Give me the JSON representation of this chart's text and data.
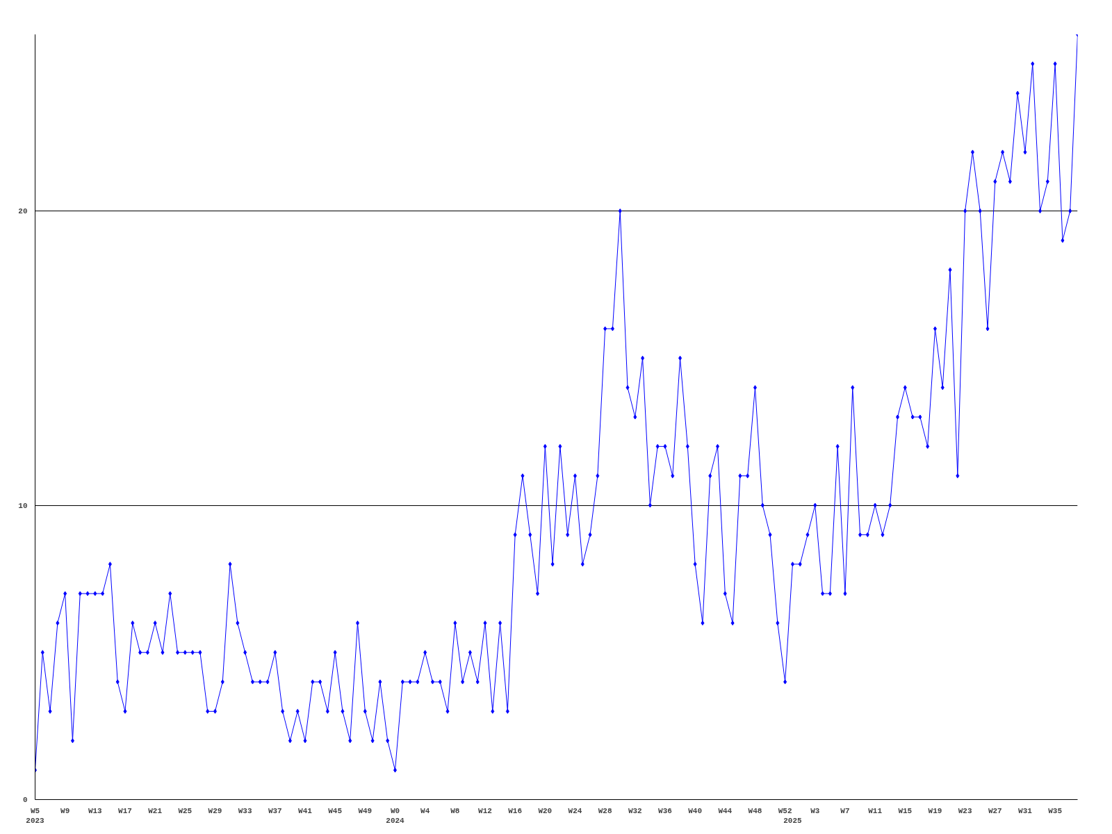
{
  "chart_data": {
    "type": "line",
    "categories": [
      "W5\n2023",
      null,
      null,
      null,
      "W9",
      null,
      null,
      null,
      "W13",
      null,
      null,
      null,
      "W17",
      null,
      null,
      null,
      "W21",
      null,
      null,
      null,
      "W25",
      null,
      null,
      null,
      "W29",
      null,
      null,
      null,
      "W33",
      null,
      null,
      null,
      "W37",
      null,
      null,
      null,
      "W41",
      null,
      null,
      null,
      "W45",
      null,
      null,
      null,
      "W49",
      null,
      null,
      null,
      "W0\n2024",
      null,
      null,
      null,
      "W4",
      null,
      null,
      null,
      "W8",
      null,
      null,
      null,
      "W12",
      null,
      null,
      null,
      "W16",
      null,
      null,
      null,
      "W20",
      null,
      null,
      null,
      "W24",
      null,
      null,
      null,
      "W28",
      null,
      null,
      null,
      "W32",
      null,
      null,
      null,
      "W36",
      null,
      null,
      null,
      "W40",
      null,
      null,
      null,
      "W44",
      null,
      null,
      null,
      "W48",
      null,
      null,
      null,
      "W52",
      "\n2025",
      null,
      null,
      "W3",
      null,
      null,
      null,
      "W7",
      null,
      null,
      null,
      "W11",
      null,
      null,
      null,
      "W15",
      null,
      null,
      null,
      "W19",
      null,
      null,
      null,
      "W23",
      null,
      null,
      null,
      "W27",
      null,
      null,
      null,
      "W31",
      null,
      null,
      null,
      "W35",
      null,
      null,
      null
    ],
    "series": [
      {
        "color": "#0000ff",
        "values": [
          1,
          5,
          3,
          6,
          7,
          2,
          7,
          7,
          7,
          7,
          8,
          4,
          3,
          6,
          5,
          5,
          6,
          5,
          7,
          5,
          5,
          5,
          5,
          3,
          3,
          4,
          8,
          6,
          5,
          4,
          4,
          4,
          5,
          3,
          2,
          3,
          2,
          4,
          4,
          3,
          5,
          3,
          2,
          6,
          3,
          2,
          4,
          2,
          1,
          4,
          4,
          4,
          5,
          4,
          4,
          3,
          6,
          4,
          5,
          4,
          6,
          3,
          6,
          3,
          9,
          11,
          9,
          7,
          12,
          8,
          12,
          9,
          11,
          8,
          9,
          11,
          16,
          16,
          20,
          14,
          13,
          15,
          10,
          12,
          12,
          11,
          15,
          12,
          8,
          6,
          11,
          12,
          7,
          6,
          11,
          11,
          14,
          10,
          9,
          6,
          4,
          8,
          8,
          9,
          10,
          7,
          7,
          12,
          7,
          14,
          9,
          9,
          10,
          9,
          10,
          13,
          14,
          13,
          13,
          12,
          16,
          14,
          18,
          11,
          20,
          22,
          20,
          16,
          21,
          22,
          21,
          24,
          22,
          25,
          20,
          21,
          25,
          19,
          20,
          26
        ]
      }
    ],
    "ylim": [
      0,
      26
    ],
    "yticks": [
      0,
      10,
      20
    ],
    "grid": "y",
    "marker": "diamond",
    "line_style": "solid"
  }
}
